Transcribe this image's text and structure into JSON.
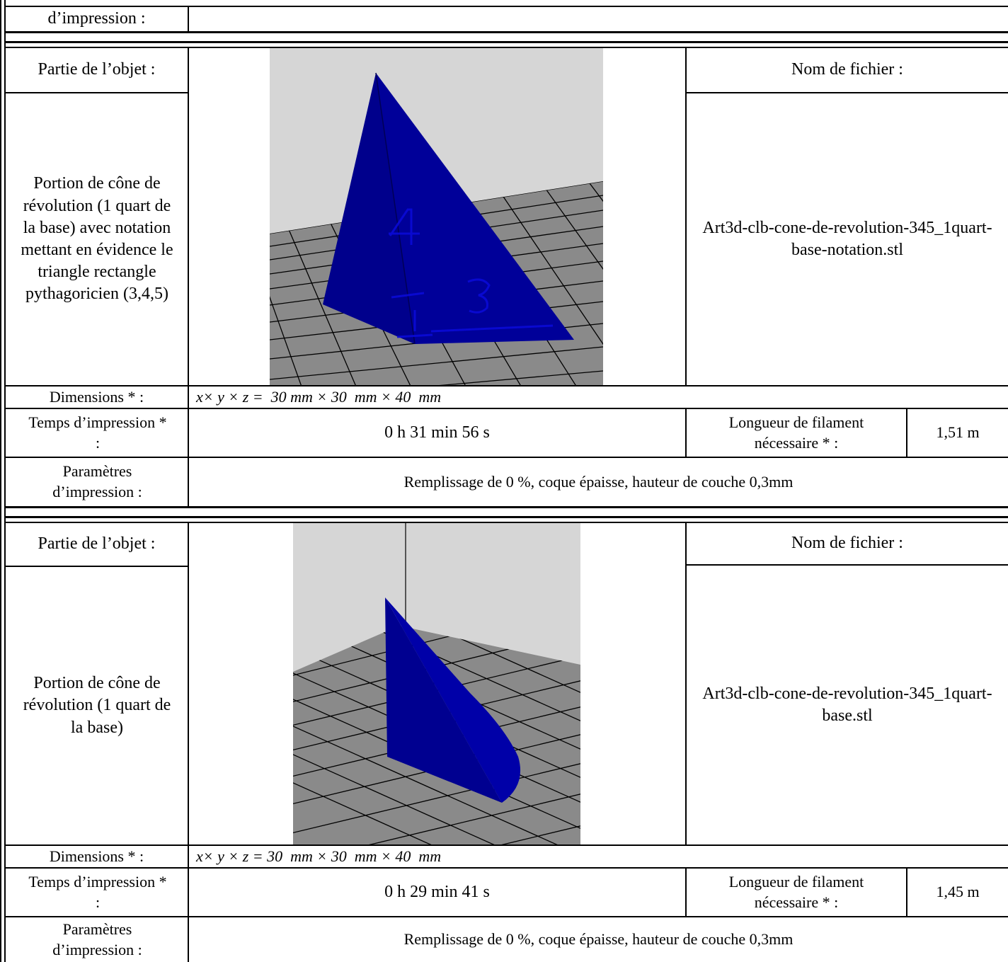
{
  "top_fragment": {
    "label": "d’impression :"
  },
  "records": [
    {
      "label_partie": "Partie de l’objet :",
      "partie_description": "Portion de cône de révolution (1 quart de la base) avec notation mettant en évidence le triangle rectangle pythagoricien (3,4,5)",
      "label_nom_fichier": "Nom de fichier :",
      "nom_fichier": "Art3d-clb-cone-de-revolution-345_1quart-base-notation.stl",
      "label_dimensions": "Dimensions * :",
      "dimensions": "x× y × z =  30 mm × 30  mm × 40  mm",
      "label_temps": "Temps d’impression * :",
      "temps": "0 h 31 min 56 s",
      "label_longueur": "Longueur de filament nécessaire * :",
      "longueur": "1,51 m",
      "label_parametres": "Paramètres d’impression :",
      "parametres": "Remplissage de 0 %, coque épaisse, hauteur de couche 0,3mm",
      "image_colors": {
        "background": "#d6d6d6",
        "bed": "#8a8a8a",
        "object": "#00008f"
      }
    },
    {
      "label_partie": "Partie de l’objet :",
      "partie_description": "Portion de cône de révolution (1 quart de la base)",
      "label_nom_fichier": "Nom de fichier :",
      "nom_fichier": "Art3d-clb-cone-de-revolution-345_1quart-base.stl",
      "label_dimensions": "Dimensions * :",
      "dimensions": "x× y × z = 30  mm × 30  mm × 40  mm",
      "label_temps": "Temps d’impression * :",
      "temps": "0 h 29 min 41 s",
      "label_longueur": "Longueur de filament nécessaire * :",
      "longueur": "1,45 m",
      "label_parametres": "Paramètres d’impression :",
      "parametres": "Remplissage de 0 %, coque épaisse, hauteur de couche 0,3mm",
      "image_colors": {
        "background": "#d6d6d6",
        "bed": "#8a8a8a",
        "object": "#00008f"
      }
    }
  ]
}
